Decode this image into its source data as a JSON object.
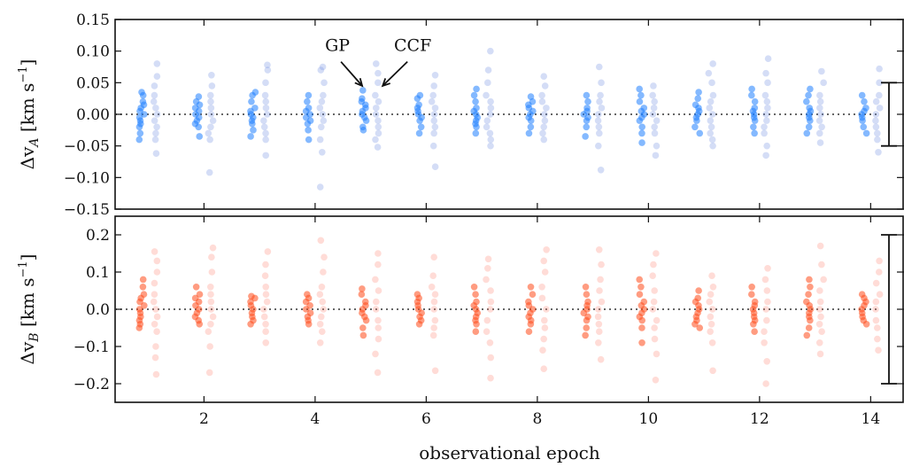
{
  "chart_data": {
    "type": "scatter",
    "xlabel": "observational epoch",
    "xlim": [
      0.4,
      14.6
    ],
    "x_ticks": [
      2,
      4,
      6,
      8,
      10,
      12,
      14
    ],
    "x_tick_labels": [
      "2",
      "4",
      "6",
      "8",
      "10",
      "12",
      "14"
    ],
    "epochs": [
      1,
      2,
      3,
      4,
      5,
      6,
      7,
      8,
      9,
      10,
      11,
      12,
      13,
      14
    ],
    "panels": [
      {
        "id": "A",
        "ylabel_prefix": "Δv",
        "ylabel_sub": "A",
        "ylabel_unit": "[km s",
        "ylabel_exp": "−1",
        "ylabel_close": "]",
        "ylim": [
          -0.15,
          0.15
        ],
        "y_ticks": [
          -0.15,
          -0.1,
          -0.05,
          0.0,
          0.05,
          0.1,
          0.15
        ],
        "y_tick_labels": [
          "−0.15",
          "−0.10",
          "−0.05",
          "0.00",
          "0.05",
          "0.10",
          "0.15"
        ],
        "reference_line": 0.0,
        "error_bar": [
          -0.05,
          0.05
        ],
        "series": [
          {
            "name": "GP",
            "color": "#1f7fff",
            "x_offset": -0.12,
            "epoch_points": [
              [
                -0.04,
                -0.03,
                -0.02,
                -0.015,
                -0.01,
                -0.005,
                0,
                0.005,
                0.01,
                0.015,
                0.02,
                0.03,
                0.035
              ],
              [
                -0.035,
                -0.02,
                -0.015,
                -0.01,
                -0.005,
                0,
                0.005,
                0.01,
                0.015,
                0.02,
                0.028
              ],
              [
                -0.035,
                -0.025,
                -0.015,
                -0.01,
                -0.005,
                0,
                0.005,
                0.01,
                0.02,
                0.03,
                0.035
              ],
              [
                -0.04,
                -0.025,
                -0.015,
                -0.01,
                -0.005,
                0,
                0.005,
                0.01,
                0.02,
                0.03
              ],
              [
                -0.025,
                -0.02,
                -0.01,
                -0.005,
                0,
                0.005,
                0.01,
                0.015,
                0.02,
                0.025,
                0.038
              ],
              [
                -0.03,
                -0.02,
                -0.01,
                -0.005,
                0,
                0.005,
                0.01,
                0.015,
                0.025,
                0.03
              ],
              [
                -0.03,
                -0.02,
                -0.015,
                -0.01,
                -0.005,
                0,
                0.005,
                0.01,
                0.02,
                0.03,
                0.04
              ],
              [
                -0.03,
                -0.02,
                -0.01,
                -0.005,
                0,
                0.005,
                0.01,
                0.015,
                0.02,
                0.028
              ],
              [
                -0.035,
                -0.02,
                -0.01,
                -0.005,
                0,
                0.005,
                0.01,
                0.02,
                0.03
              ],
              [
                -0.045,
                -0.03,
                -0.02,
                -0.01,
                -0.005,
                0,
                0.005,
                0.01,
                0.02,
                0.03,
                0.04
              ],
              [
                -0.03,
                -0.02,
                -0.01,
                -0.005,
                0,
                0.005,
                0.01,
                0.015,
                0.025,
                0.035
              ],
              [
                -0.03,
                -0.02,
                -0.01,
                -0.005,
                0,
                0.005,
                0.01,
                0.02,
                0.03,
                0.04
              ],
              [
                -0.03,
                -0.02,
                -0.01,
                -0.005,
                0,
                0.005,
                0.01,
                0.02,
                0.03,
                0.04
              ],
              [
                -0.03,
                -0.02,
                -0.01,
                -0.005,
                0,
                0.005,
                0.01,
                0.02,
                0.03
              ]
            ]
          },
          {
            "name": "CCF",
            "color": "#6f8fe0",
            "x_offset": 0.12,
            "epoch_points": [
              [
                -0.062,
                -0.04,
                -0.03,
                -0.02,
                -0.01,
                0,
                0.01,
                0.02,
                0.03,
                0.045,
                0.06,
                0.08
              ],
              [
                -0.092,
                -0.04,
                -0.03,
                -0.02,
                -0.01,
                0,
                0.01,
                0.02,
                0.03,
                0.045,
                0.062
              ],
              [
                -0.065,
                -0.04,
                -0.03,
                -0.02,
                -0.01,
                0,
                0.01,
                0.02,
                0.03,
                0.05,
                0.07,
                0.078
              ],
              [
                -0.115,
                -0.06,
                -0.04,
                -0.02,
                -0.01,
                0,
                0.01,
                0.02,
                0.03,
                0.05,
                0.07,
                0.075
              ],
              [
                -0.052,
                -0.04,
                -0.03,
                -0.02,
                -0.01,
                0,
                0.01,
                0.02,
                0.03,
                0.05,
                0.065,
                0.08
              ],
              [
                -0.083,
                -0.05,
                -0.03,
                -0.02,
                -0.01,
                0,
                0.01,
                0.02,
                0.03,
                0.045,
                0.062
              ],
              [
                -0.05,
                -0.04,
                -0.03,
                -0.02,
                -0.01,
                0,
                0.01,
                0.02,
                0.03,
                0.05,
                0.07,
                0.1
              ],
              [
                -0.04,
                -0.03,
                -0.02,
                -0.01,
                0,
                0.01,
                0.02,
                0.03,
                0.045,
                0.06
              ],
              [
                -0.088,
                -0.05,
                -0.03,
                -0.02,
                -0.01,
                0,
                0.01,
                0.02,
                0.03,
                0.05,
                0.075
              ],
              [
                -0.065,
                -0.05,
                -0.03,
                -0.02,
                -0.01,
                0,
                0.01,
                0.02,
                0.03,
                0.045
              ],
              [
                -0.05,
                -0.04,
                -0.03,
                -0.02,
                -0.01,
                0,
                0.01,
                0.02,
                0.03,
                0.05,
                0.065,
                0.08
              ],
              [
                -0.065,
                -0.05,
                -0.03,
                -0.02,
                -0.01,
                0,
                0.01,
                0.02,
                0.03,
                0.05,
                0.065,
                0.088
              ],
              [
                -0.045,
                -0.03,
                -0.02,
                -0.01,
                0,
                0.01,
                0.02,
                0.03,
                0.05,
                0.068
              ],
              [
                -0.06,
                -0.04,
                -0.03,
                -0.02,
                -0.01,
                0,
                0.01,
                0.02,
                0.03,
                0.05,
                0.072
              ]
            ]
          }
        ],
        "annotations": [
          {
            "text": "GP",
            "epoch": 5,
            "series": "GP",
            "target_y": 0.045,
            "text_y": 0.1
          },
          {
            "text": "CCF",
            "epoch": 5,
            "series": "CCF",
            "target_y": 0.045,
            "text_y": 0.1
          }
        ]
      },
      {
        "id": "B",
        "ylabel_prefix": "Δv",
        "ylabel_sub": "B",
        "ylabel_unit": "[km s",
        "ylabel_exp": "−1",
        "ylabel_close": "]",
        "ylim": [
          -0.25,
          0.25
        ],
        "y_ticks": [
          -0.2,
          -0.1,
          0.0,
          0.1,
          0.2
        ],
        "y_tick_labels": [
          "−0.2",
          "−0.1",
          "0.0",
          "0.1",
          "0.2"
        ],
        "reference_line": 0.0,
        "error_bar": [
          -0.2,
          0.2
        ],
        "series": [
          {
            "name": "GP",
            "color": "#ff4a1a",
            "x_offset": -0.12,
            "epoch_points": [
              [
                -0.05,
                -0.04,
                -0.03,
                -0.02,
                -0.01,
                0,
                0.01,
                0.02,
                0.03,
                0.04,
                0.06,
                0.08
              ],
              [
                -0.04,
                -0.03,
                -0.02,
                -0.01,
                0,
                0.01,
                0.02,
                0.03,
                0.04,
                0.06
              ],
              [
                -0.04,
                -0.03,
                -0.02,
                -0.01,
                0,
                0.01,
                0.02,
                0.03,
                0.035
              ],
              [
                -0.04,
                -0.03,
                -0.02,
                -0.01,
                0,
                0.01,
                0.02,
                0.03,
                0.04
              ],
              [
                -0.07,
                -0.05,
                -0.03,
                -0.02,
                -0.01,
                0,
                0.01,
                0.02,
                0.04,
                0.055
              ],
              [
                -0.04,
                -0.03,
                -0.02,
                -0.01,
                0,
                0.01,
                0.02,
                0.03,
                0.04
              ],
              [
                -0.06,
                -0.04,
                -0.03,
                -0.02,
                -0.01,
                0,
                0.01,
                0.02,
                0.04,
                0.06
              ],
              [
                -0.06,
                -0.04,
                -0.03,
                -0.02,
                -0.01,
                0,
                0.01,
                0.02,
                0.04,
                0.06
              ],
              [
                -0.07,
                -0.05,
                -0.03,
                -0.02,
                -0.01,
                0,
                0.01,
                0.02,
                0.04,
                0.06
              ],
              [
                -0.09,
                -0.05,
                -0.03,
                -0.02,
                -0.01,
                0,
                0.01,
                0.02,
                0.04,
                0.06,
                0.08
              ],
              [
                -0.05,
                -0.04,
                -0.03,
                -0.02,
                -0.01,
                0,
                0.01,
                0.02,
                0.03,
                0.05
              ],
              [
                -0.06,
                -0.04,
                -0.03,
                -0.02,
                -0.01,
                0,
                0.01,
                0.02,
                0.04,
                0.06
              ],
              [
                -0.07,
                -0.05,
                -0.03,
                -0.02,
                -0.01,
                0,
                0.01,
                0.02,
                0.04,
                0.06,
                0.08
              ],
              [
                -0.04,
                -0.03,
                -0.02,
                -0.01,
                0,
                0.01,
                0.02,
                0.03,
                0.04
              ]
            ]
          },
          {
            "name": "CCF",
            "color": "#ff8a7a",
            "x_offset": 0.12,
            "epoch_points": [
              [
                -0.175,
                -0.13,
                -0.1,
                -0.06,
                -0.04,
                -0.02,
                0,
                0.02,
                0.04,
                0.07,
                0.1,
                0.13,
                0.155
              ],
              [
                -0.17,
                -0.1,
                -0.06,
                -0.04,
                -0.02,
                0,
                0.02,
                0.04,
                0.06,
                0.1,
                0.14,
                0.165
              ],
              [
                -0.09,
                -0.06,
                -0.04,
                -0.02,
                0,
                0.02,
                0.04,
                0.06,
                0.09,
                0.12,
                0.155
              ],
              [
                -0.09,
                -0.06,
                -0.04,
                -0.02,
                0,
                0.02,
                0.04,
                0.06,
                0.1,
                0.14,
                0.185
              ],
              [
                -0.17,
                -0.12,
                -0.08,
                -0.05,
                -0.03,
                0,
                0.02,
                0.05,
                0.08,
                0.12,
                0.15
              ],
              [
                -0.165,
                -0.07,
                -0.05,
                -0.03,
                0,
                0.02,
                0.04,
                0.06,
                0.09,
                0.14
              ],
              [
                -0.185,
                -0.13,
                -0.09,
                -0.06,
                -0.03,
                0,
                0.02,
                0.05,
                0.08,
                0.11,
                0.135
              ],
              [
                -0.16,
                -0.11,
                -0.08,
                -0.05,
                -0.03,
                0,
                0.03,
                0.06,
                0.1,
                0.13,
                0.16
              ],
              [
                -0.135,
                -0.09,
                -0.06,
                -0.04,
                -0.02,
                0,
                0.02,
                0.05,
                0.08,
                0.12,
                0.16
              ],
              [
                -0.19,
                -0.12,
                -0.08,
                -0.05,
                -0.03,
                0,
                0.02,
                0.05,
                0.09,
                0.12,
                0.15
              ],
              [
                -0.165,
                -0.09,
                -0.06,
                -0.04,
                -0.02,
                0,
                0.02,
                0.04,
                0.06,
                0.09
              ],
              [
                -0.2,
                -0.14,
                -0.09,
                -0.06,
                -0.03,
                0,
                0.02,
                0.05,
                0.08,
                0.11
              ],
              [
                -0.12,
                -0.09,
                -0.06,
                -0.04,
                -0.02,
                0,
                0.02,
                0.05,
                0.08,
                0.12,
                0.17
              ],
              [
                -0.11,
                -0.08,
                -0.05,
                -0.03,
                0,
                0.02,
                0.04,
                0.07,
                0.1,
                0.13
              ]
            ]
          }
        ],
        "annotations": []
      }
    ]
  }
}
